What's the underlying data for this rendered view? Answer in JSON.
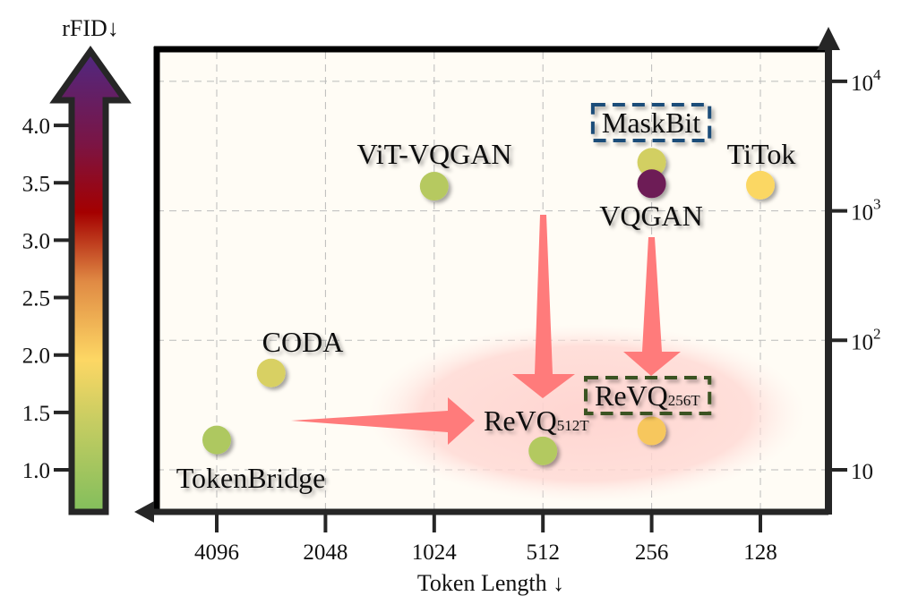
{
  "chart_data": {
    "type": "scatter",
    "title": "",
    "xlabel": "Token Length ↓",
    "ylabel": "",
    "x_scale": "log2",
    "x_reversed": true,
    "x_ticks": [
      4096,
      2048,
      1024,
      512,
      256,
      128
    ],
    "y_scale": "log10",
    "y_ticks": [
      10,
      100,
      1000,
      10000
    ],
    "y_tick_labels": [
      "10",
      "10^2",
      "10^3",
      "10^4"
    ],
    "y_axis_side": "right",
    "grid": true,
    "colorbar": {
      "label": "rFID↓",
      "ticks": [
        1.0,
        1.5,
        2.0,
        2.5,
        3.0,
        3.5,
        4.0
      ],
      "range": [
        0.75,
        4.3
      ],
      "colors": [
        "#82be5c",
        "#d2cf64",
        "#fdd764",
        "#e08a44",
        "#a40000",
        "#7a1545",
        "#4f2882"
      ]
    },
    "points": [
      {
        "name": "TokenBridge",
        "x": 4096,
        "y": 17,
        "rfid": 1.2
      },
      {
        "name": "CODA",
        "x": 2896,
        "y": 56,
        "rfid": 1.6
      },
      {
        "name": "ViT-VQGAN",
        "x": 1024,
        "y": 1550,
        "rfid": 1.28
      },
      {
        "name": "ReVQ",
        "sub": "512T",
        "x": 512,
        "y": 14,
        "rfid": 1.25,
        "highlight": "none"
      },
      {
        "name": "ReVQ",
        "sub": "256T",
        "x": 256,
        "y": 20,
        "rfid": 2.05,
        "highlight": "#3b5323"
      },
      {
        "name": "MaskBit",
        "x": 256,
        "y": 2370,
        "rfid": 1.55,
        "highlight": "#1f4e79"
      },
      {
        "name": "VQGAN",
        "x": 256,
        "y": 1620,
        "rfid": 3.8
      },
      {
        "name": "TiTok",
        "x": 128,
        "y": 1580,
        "rfid": 1.9
      }
    ],
    "annotation_color": "#ff7b7b"
  }
}
